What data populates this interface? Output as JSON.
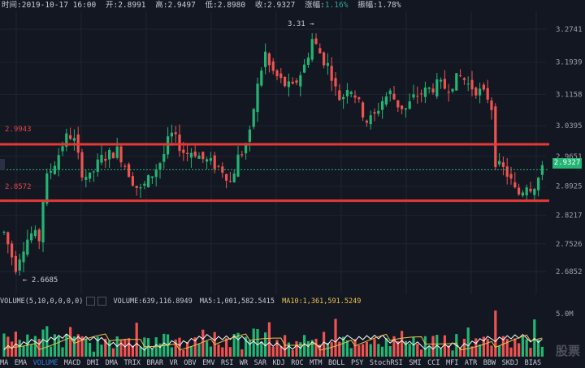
{
  "header": {
    "time": "时间:2019-10-17 16:00",
    "open": "开:2.8991",
    "high": "高:2.9497",
    "low": "低:2.8980",
    "close": "收:2.9327",
    "change_label": "涨幅:",
    "change_value": "1.16%",
    "amplitude": "振幅:1.78%"
  },
  "chart_data": {
    "type": "candlestick",
    "price_axis_ticks": [
      "3.2741",
      "3.1939",
      "3.1158",
      "3.0395",
      "2.9651",
      "2.8925",
      "2.8217",
      "2.7526",
      "2.6852"
    ],
    "current_price": "2.9327",
    "resistance_label": "2.9943",
    "support_label": "2.8572",
    "max_annotation": "3.31",
    "min_annotation": "2.6685",
    "volume_tick": "5.0M",
    "colors": {
      "up": "#22b573",
      "down": "#ef5350",
      "level": "#e53935",
      "ma5": "#ffffff",
      "ma10": "#e7c450"
    }
  },
  "volume_legend": {
    "label": "VOLUME(5,10,0,0,0,0)",
    "volume": "VOLUME:639,116.8949",
    "ma5": "MA5:1,001,582.5415",
    "ma10": "MA10:1,361,591.5249"
  },
  "tabs": [
    "MA",
    "EMA",
    "VOLUME",
    "MACD",
    "DMI",
    "DMA",
    "TRIX",
    "BRAR",
    "VR",
    "OBV",
    "EMV",
    "RSI",
    "WR",
    "SAR",
    "KDJ",
    "ROC",
    "MTM",
    "BOLL",
    "PSY",
    "StochRSI",
    "SMI",
    "CCI",
    "MFI",
    "ATR",
    "BBW",
    "SKDJ",
    "BIAS"
  ],
  "active_tab": "VOLUME",
  "watermark": "股票"
}
